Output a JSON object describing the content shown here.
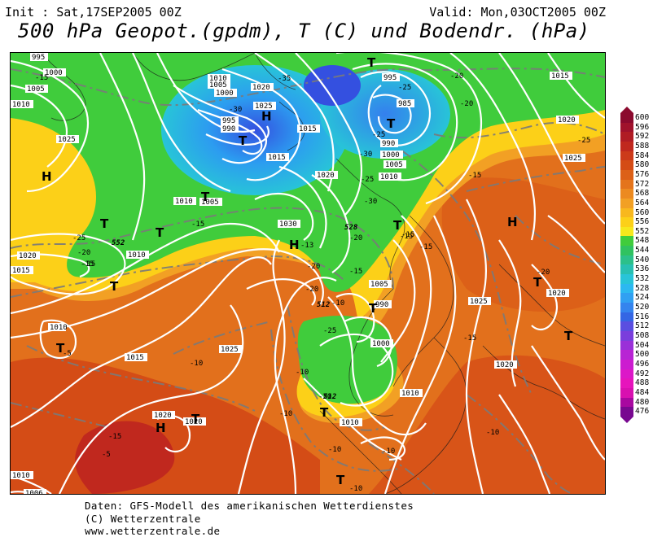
{
  "header": {
    "init": "Init : Sat,17SEP2005 00Z",
    "valid": "Valid: Mon,03OCT2005 00Z",
    "title": "500 hPa Geopot.(gpdm), T (C) und Bodendr. (hPa)"
  },
  "footer": {
    "line1": "Daten: GFS-Modell des amerikanischen Wetterdienstes",
    "line2": "(C) Wetterzentrale",
    "line3": "www.wetterzentrale.de"
  },
  "colorbar": {
    "labels": [
      "600",
      "596",
      "592",
      "588",
      "584",
      "580",
      "576",
      "572",
      "568",
      "564",
      "560",
      "556",
      "552",
      "548",
      "544",
      "540",
      "536",
      "532",
      "528",
      "524",
      "520",
      "516",
      "512",
      "508",
      "504",
      "500",
      "496",
      "492",
      "488",
      "484",
      "480",
      "476"
    ],
    "colors": [
      "#8b0a2e",
      "#a0122c",
      "#b01c24",
      "#c0281e",
      "#cc3a1a",
      "#d44c16",
      "#dc6018",
      "#e4741c",
      "#ec8a20",
      "#f2a024",
      "#f8b81e",
      "#fcd018",
      "#f6e81c",
      "#40cc3c",
      "#30c260",
      "#2cc08a",
      "#28c0b2",
      "#28c4d8",
      "#2cb8f0",
      "#30a0f2",
      "#3484ee",
      "#3466e4",
      "#5a4ee0",
      "#7a3edc",
      "#9a30d8",
      "#b824d4",
      "#cc1cd0",
      "#dc18c8",
      "#e614bc",
      "#d810b0",
      "#a808a0",
      "#780890"
    ]
  },
  "map": {
    "pressure_labels": [
      {
        "t": "995"
      },
      {
        "t": "1000"
      },
      {
        "t": "1005"
      },
      {
        "t": "1010"
      },
      {
        "t": "1025"
      },
      {
        "t": "1010"
      },
      {
        "t": "1005"
      },
      {
        "t": "1000"
      },
      {
        "t": "1020"
      },
      {
        "t": "1025"
      },
      {
        "t": "995"
      },
      {
        "t": "990"
      },
      {
        "t": "1015"
      },
      {
        "t": "1020"
      },
      {
        "t": "1015"
      },
      {
        "t": "995"
      },
      {
        "t": "985"
      },
      {
        "t": "990"
      },
      {
        "t": "1000"
      },
      {
        "t": "1005"
      },
      {
        "t": "1010"
      },
      {
        "t": "1015"
      },
      {
        "t": "1020"
      },
      {
        "t": "1025"
      },
      {
        "t": "1005"
      },
      {
        "t": "1030"
      },
      {
        "t": "1010"
      },
      {
        "t": "1020"
      },
      {
        "t": "1010"
      },
      {
        "t": "1015"
      },
      {
        "t": "1010"
      },
      {
        "t": "1015"
      },
      {
        "t": "1025"
      },
      {
        "t": "1020"
      },
      {
        "t": "1020"
      },
      {
        "t": "990"
      },
      {
        "t": "1005"
      },
      {
        "t": "1000"
      },
      {
        "t": "1010"
      },
      {
        "t": "1010"
      },
      {
        "t": "1020"
      },
      {
        "t": "1025"
      },
      {
        "t": "1020"
      },
      {
        "t": "1010"
      },
      {
        "t": "1006"
      }
    ],
    "temp_labels": [
      {
        "t": "-15"
      },
      {
        "t": "-35"
      },
      {
        "t": "-30"
      },
      {
        "t": "-25"
      },
      {
        "t": "-20"
      },
      {
        "t": "-25"
      },
      {
        "t": "-20"
      },
      {
        "t": "-25"
      },
      {
        "t": "-15"
      },
      {
        "t": "-30"
      },
      {
        "t": "-15"
      },
      {
        "t": "-25"
      },
      {
        "t": "-20"
      },
      {
        "t": "-15"
      },
      {
        "t": "-15"
      },
      {
        "t": "-20"
      },
      {
        "t": "-15"
      },
      {
        "t": "-20"
      },
      {
        "t": "-25"
      },
      {
        "t": "-15"
      },
      {
        "t": "-20"
      },
      {
        "t": "-30"
      },
      {
        "t": "-25"
      },
      {
        "t": "-15"
      },
      {
        "t": "-15"
      },
      {
        "t": "-20"
      },
      {
        "t": "-15"
      },
      {
        "t": "-10"
      },
      {
        "t": "-5"
      },
      {
        "t": "-10"
      },
      {
        "t": "-10"
      },
      {
        "t": "-10"
      },
      {
        "t": "-10"
      },
      {
        "t": "-10"
      },
      {
        "t": "-10"
      },
      {
        "t": "-15"
      },
      {
        "t": "-5"
      },
      {
        "t": "-10"
      },
      {
        "t": "-20"
      },
      {
        "t": "-13"
      }
    ],
    "geo_labels": [
      {
        "t": "552"
      },
      {
        "t": "528"
      },
      {
        "t": "512"
      },
      {
        "t": "512"
      }
    ],
    "highs": [
      "H",
      "H",
      "H",
      "H",
      "H",
      "H",
      "H"
    ],
    "lows": [
      "T",
      "T",
      "T",
      "T",
      "T",
      "T",
      "T",
      "T",
      "T",
      "T",
      "T",
      "T",
      "T",
      "T",
      "T"
    ]
  }
}
